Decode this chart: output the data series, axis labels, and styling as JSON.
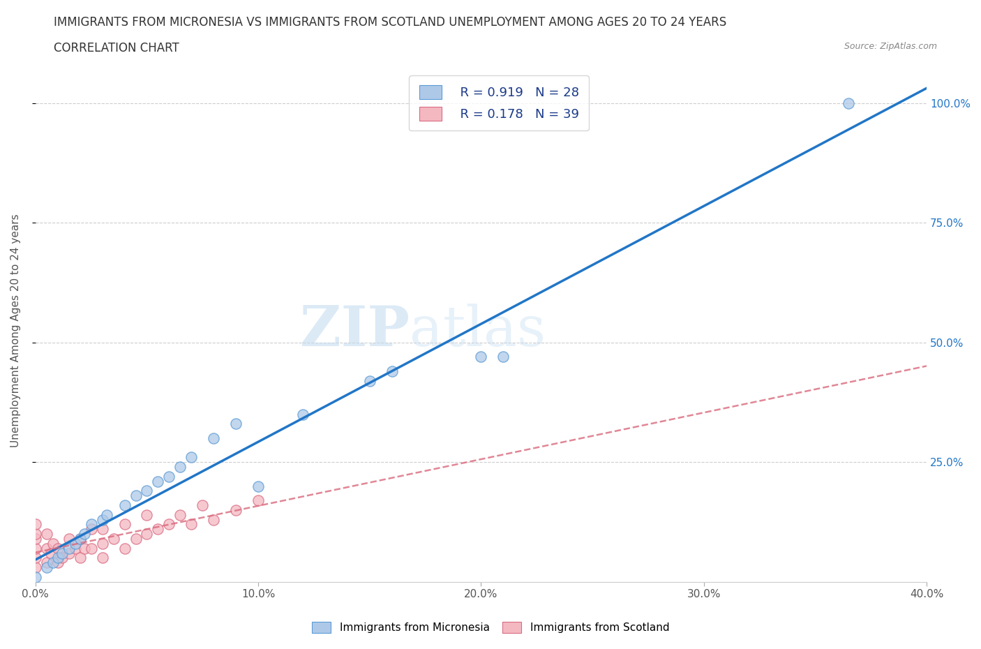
{
  "title_line1": "IMMIGRANTS FROM MICRONESIA VS IMMIGRANTS FROM SCOTLAND UNEMPLOYMENT AMONG AGES 20 TO 24 YEARS",
  "title_line2": "CORRELATION CHART",
  "source": "Source: ZipAtlas.com",
  "ylabel": "Unemployment Among Ages 20 to 24 years",
  "xlim": [
    0.0,
    0.4
  ],
  "ylim": [
    0.0,
    1.05
  ],
  "xtick_labels": [
    "0.0%",
    "10.0%",
    "20.0%",
    "30.0%",
    "40.0%"
  ],
  "xtick_values": [
    0.0,
    0.1,
    0.2,
    0.3,
    0.4
  ],
  "ytick_labels": [
    "25.0%",
    "50.0%",
    "75.0%",
    "100.0%"
  ],
  "ytick_values": [
    0.25,
    0.5,
    0.75,
    1.0
  ],
  "micronesia_color": "#aec9e8",
  "micronesia_edge": "#5b9bd5",
  "scotland_color": "#f4b8c1",
  "scotland_edge": "#d96b82",
  "regression_blue_color": "#2176c7",
  "regression_pink_color": "#d9697c",
  "watermark_zip": "ZIP",
  "watermark_atlas": "atlas",
  "legend_R1": "R = 0.919",
  "legend_N1": "N = 28",
  "legend_R2": "R = 0.178",
  "legend_N2": "N = 39",
  "micronesia_x": [
    0.0,
    0.005,
    0.008,
    0.01,
    0.012,
    0.015,
    0.018,
    0.02,
    0.022,
    0.025,
    0.03,
    0.032,
    0.04,
    0.045,
    0.05,
    0.055,
    0.06,
    0.065,
    0.07,
    0.08,
    0.09,
    0.1,
    0.12,
    0.15,
    0.16,
    0.2,
    0.21,
    0.365
  ],
  "micronesia_y": [
    0.01,
    0.03,
    0.04,
    0.05,
    0.06,
    0.07,
    0.08,
    0.09,
    0.1,
    0.12,
    0.13,
    0.14,
    0.16,
    0.18,
    0.19,
    0.21,
    0.22,
    0.24,
    0.26,
    0.3,
    0.33,
    0.2,
    0.35,
    0.42,
    0.44,
    0.47,
    0.47,
    1.0
  ],
  "scotland_x": [
    0.0,
    0.0,
    0.0,
    0.0,
    0.0,
    0.0,
    0.005,
    0.005,
    0.005,
    0.007,
    0.008,
    0.01,
    0.01,
    0.012,
    0.015,
    0.015,
    0.018,
    0.02,
    0.02,
    0.022,
    0.025,
    0.025,
    0.03,
    0.03,
    0.03,
    0.035,
    0.04,
    0.04,
    0.045,
    0.05,
    0.05,
    0.055,
    0.06,
    0.065,
    0.07,
    0.075,
    0.08,
    0.09,
    0.1
  ],
  "scotland_y": [
    0.03,
    0.05,
    0.07,
    0.09,
    0.1,
    0.12,
    0.04,
    0.07,
    0.1,
    0.06,
    0.08,
    0.04,
    0.07,
    0.05,
    0.06,
    0.09,
    0.07,
    0.05,
    0.09,
    0.07,
    0.07,
    0.11,
    0.05,
    0.08,
    0.11,
    0.09,
    0.07,
    0.12,
    0.09,
    0.1,
    0.14,
    0.11,
    0.12,
    0.14,
    0.12,
    0.16,
    0.13,
    0.15,
    0.17
  ],
  "grid_color": "#cccccc",
  "background_color": "#ffffff",
  "title_fontsize": 12,
  "axis_label_fontsize": 11,
  "tick_fontsize": 11
}
